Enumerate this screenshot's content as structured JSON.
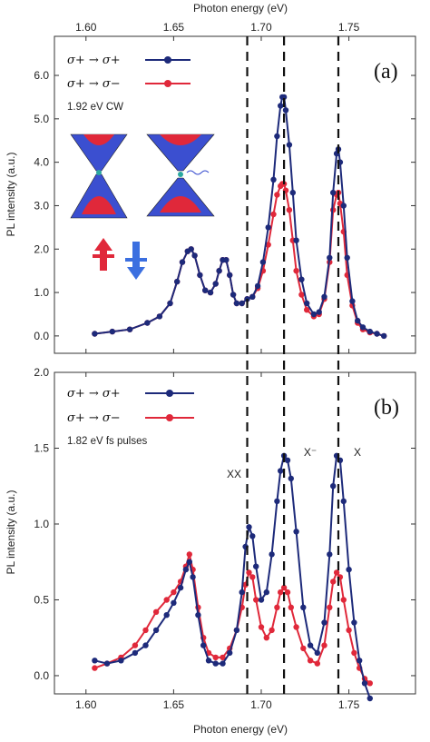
{
  "colors": {
    "s_plus": "#1d2a7a",
    "s_minus": "#e0283a",
    "dashed": "#111111",
    "frame": "#333333"
  },
  "top_axis_label": "Photon energy (eV)",
  "bottom_axis_label": "Photon energy (eV)",
  "x_ticks": [
    "1.60",
    "1.65",
    "1.70",
    "1.75"
  ],
  "dashed_lines_eV": [
    1.692,
    1.713,
    1.744
  ],
  "icons": {
    "inset": "valley-band-diagram-icon",
    "spin_up": "spin-up-arrow-icon",
    "spin_down": "spin-down-arrow-icon"
  },
  "chart_data": [
    {
      "type": "line",
      "panel": "(a)",
      "ylabel": "PL intensity (a.u.)",
      "xlabel": "Photon energy (eV)",
      "xlim": [
        1.582,
        1.788
      ],
      "ylim": [
        -0.4,
        6.9
      ],
      "yticks": [
        "0.0",
        "1.0",
        "2.0",
        "3.0",
        "4.0",
        "5.0",
        "6.0"
      ],
      "xticks": [
        "1.60",
        "1.65",
        "1.70",
        "1.75"
      ],
      "condition": "1.92 eV CW",
      "series": [
        {
          "name": "σ+ → σ+",
          "x": [
            1.605,
            1.615,
            1.625,
            1.635,
            1.642,
            1.648,
            1.652,
            1.655,
            1.658,
            1.66,
            1.662,
            1.665,
            1.668,
            1.671,
            1.674,
            1.676,
            1.678,
            1.68,
            1.682,
            1.684,
            1.686,
            1.689,
            1.692,
            1.695,
            1.698,
            1.701,
            1.704,
            1.707,
            1.709,
            1.711,
            1.712,
            1.713,
            1.714,
            1.716,
            1.718,
            1.72,
            1.723,
            1.726,
            1.73,
            1.733,
            1.736,
            1.739,
            1.741,
            1.743,
            1.744,
            1.745,
            1.747,
            1.749,
            1.752,
            1.755,
            1.758,
            1.762,
            1.766,
            1.77
          ],
          "y": [
            0.05,
            0.1,
            0.15,
            0.3,
            0.45,
            0.75,
            1.25,
            1.7,
            1.95,
            2.0,
            1.85,
            1.4,
            1.05,
            1.0,
            1.2,
            1.5,
            1.75,
            1.75,
            1.4,
            0.95,
            0.75,
            0.75,
            0.85,
            0.9,
            1.15,
            1.7,
            2.5,
            3.6,
            4.6,
            5.3,
            5.5,
            5.5,
            5.2,
            4.4,
            3.3,
            2.2,
            1.3,
            0.75,
            0.5,
            0.55,
            0.9,
            1.8,
            3.3,
            4.2,
            4.3,
            4.0,
            3.0,
            1.8,
            0.8,
            0.35,
            0.2,
            0.1,
            0.05,
            0.0
          ]
        },
        {
          "name": "σ+ → σ−",
          "x": [
            1.605,
            1.615,
            1.625,
            1.635,
            1.642,
            1.648,
            1.652,
            1.655,
            1.658,
            1.66,
            1.662,
            1.665,
            1.668,
            1.671,
            1.674,
            1.676,
            1.678,
            1.68,
            1.682,
            1.684,
            1.686,
            1.689,
            1.692,
            1.695,
            1.698,
            1.701,
            1.704,
            1.707,
            1.709,
            1.711,
            1.712,
            1.713,
            1.714,
            1.716,
            1.718,
            1.72,
            1.723,
            1.726,
            1.73,
            1.733,
            1.736,
            1.739,
            1.741,
            1.743,
            1.744,
            1.745,
            1.747,
            1.749,
            1.752,
            1.755,
            1.758,
            1.762,
            1.766,
            1.77
          ],
          "y": [
            0.05,
            0.1,
            0.15,
            0.3,
            0.45,
            0.75,
            1.25,
            1.7,
            1.95,
            2.0,
            1.85,
            1.4,
            1.05,
            1.0,
            1.2,
            1.5,
            1.75,
            1.75,
            1.4,
            0.95,
            0.75,
            0.75,
            0.85,
            0.9,
            1.1,
            1.5,
            2.1,
            2.8,
            3.25,
            3.45,
            3.5,
            3.5,
            3.35,
            2.9,
            2.2,
            1.5,
            0.95,
            0.6,
            0.45,
            0.5,
            0.85,
            1.7,
            2.9,
            3.25,
            3.3,
            3.05,
            2.4,
            1.4,
            0.7,
            0.3,
            0.15,
            0.08,
            0.05,
            0.0
          ]
        }
      ]
    },
    {
      "type": "line",
      "panel": "(b)",
      "ylabel": "PL intensity (a.u.)",
      "xlabel": "Photon energy (eV)",
      "xlim": [
        1.582,
        1.788
      ],
      "ylim": [
        -0.12,
        2.0
      ],
      "yticks": [
        "0.0",
        "0.5",
        "1.0",
        "1.5",
        "2.0"
      ],
      "xticks": [
        "1.60",
        "1.65",
        "1.70",
        "1.75"
      ],
      "condition": "1.82 eV fs pulses",
      "peak_labels": [
        "XX",
        "X⁻",
        "X"
      ],
      "series": [
        {
          "name": "σ+ → σ+",
          "x": [
            1.605,
            1.612,
            1.62,
            1.628,
            1.634,
            1.64,
            1.646,
            1.65,
            1.654,
            1.657,
            1.659,
            1.661,
            1.664,
            1.667,
            1.67,
            1.674,
            1.678,
            1.682,
            1.686,
            1.689,
            1.691,
            1.693,
            1.695,
            1.697,
            1.7,
            1.703,
            1.706,
            1.709,
            1.711,
            1.713,
            1.715,
            1.717,
            1.72,
            1.724,
            1.728,
            1.732,
            1.736,
            1.739,
            1.741,
            1.743,
            1.745,
            1.747,
            1.75,
            1.753,
            1.756,
            1.759,
            1.762
          ],
          "y": [
            0.1,
            0.08,
            0.1,
            0.15,
            0.2,
            0.3,
            0.4,
            0.48,
            0.58,
            0.7,
            0.75,
            0.65,
            0.4,
            0.2,
            0.1,
            0.08,
            0.08,
            0.15,
            0.3,
            0.55,
            0.85,
            0.98,
            0.92,
            0.72,
            0.5,
            0.55,
            0.8,
            1.15,
            1.35,
            1.45,
            1.42,
            1.3,
            0.95,
            0.45,
            0.2,
            0.15,
            0.35,
            0.8,
            1.25,
            1.45,
            1.42,
            1.15,
            0.7,
            0.35,
            0.1,
            -0.05,
            -0.15
          ]
        },
        {
          "name": "σ+ → σ−",
          "x": [
            1.605,
            1.612,
            1.62,
            1.628,
            1.634,
            1.64,
            1.646,
            1.65,
            1.654,
            1.657,
            1.659,
            1.661,
            1.664,
            1.667,
            1.67,
            1.674,
            1.678,
            1.682,
            1.686,
            1.689,
            1.691,
            1.693,
            1.695,
            1.697,
            1.7,
            1.703,
            1.706,
            1.709,
            1.711,
            1.713,
            1.715,
            1.717,
            1.72,
            1.724,
            1.728,
            1.732,
            1.736,
            1.739,
            1.741,
            1.743,
            1.745,
            1.747,
            1.75,
            1.753,
            1.756,
            1.759,
            1.762
          ],
          "y": [
            0.05,
            0.08,
            0.12,
            0.2,
            0.3,
            0.42,
            0.5,
            0.55,
            0.62,
            0.72,
            0.8,
            0.7,
            0.45,
            0.25,
            0.15,
            0.12,
            0.12,
            0.18,
            0.3,
            0.45,
            0.6,
            0.68,
            0.65,
            0.5,
            0.32,
            0.25,
            0.3,
            0.45,
            0.55,
            0.58,
            0.55,
            0.45,
            0.32,
            0.18,
            0.1,
            0.08,
            0.2,
            0.45,
            0.62,
            0.68,
            0.65,
            0.5,
            0.3,
            0.15,
            0.05,
            -0.02,
            -0.05
          ]
        }
      ]
    }
  ]
}
